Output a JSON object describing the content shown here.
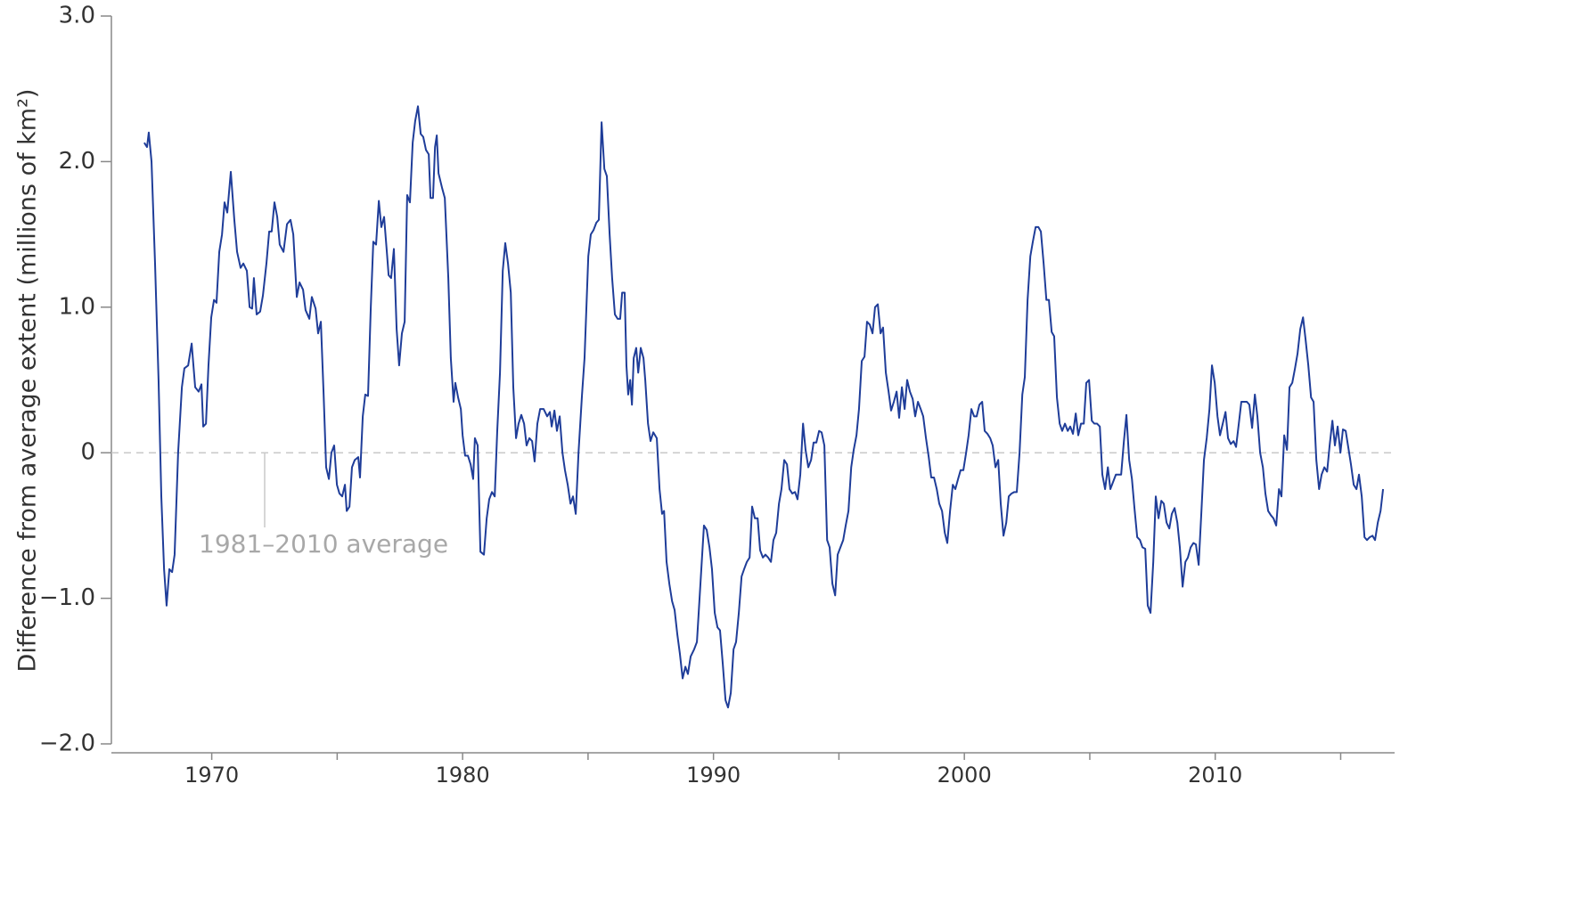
{
  "chart_data": {
    "type": "line",
    "ylabel": "Difference from average extent (millions of km²)",
    "annotation": "1981–2010 average",
    "xlim": [
      1966,
      2017.15
    ],
    "xticks": [
      1970,
      1980,
      1990,
      2000,
      2010
    ],
    "xminor": [
      1975,
      1985,
      1995,
      2005,
      2015
    ],
    "ylim": [
      -2,
      3
    ],
    "yticks": [
      {
        "value": -2,
        "label": "−2.0"
      },
      {
        "value": -1,
        "label": "−1.0"
      },
      0,
      {
        "value": 1,
        "label": "1.0"
      },
      {
        "value": 2,
        "label": "2.0"
      },
      {
        "value": 3,
        "label": "3.0"
      }
    ],
    "reference_line": 0,
    "series": [
      {
        "color": "#1f3d99",
        "x": [
          1967.31,
          1967.42,
          1967.49,
          1967.6,
          1967.74,
          1967.88,
          1967.99,
          1968.1,
          1968.2,
          1968.31,
          1968.42,
          1968.52,
          1968.66,
          1968.81,
          1968.91,
          1969.06,
          1969.2,
          1969.34,
          1969.48,
          1969.59,
          1969.66,
          1969.77,
          1969.87,
          1969.98,
          1970.09,
          1970.19,
          1970.3,
          1970.41,
          1970.51,
          1970.62,
          1970.76,
          1970.9,
          1971.01,
          1971.15,
          1971.26,
          1971.4,
          1971.51,
          1971.61,
          1971.68,
          1971.79,
          1971.93,
          1972.04,
          1972.18,
          1972.29,
          1972.39,
          1972.5,
          1972.61,
          1972.71,
          1972.86,
          1973.0,
          1973.14,
          1973.25,
          1973.39,
          1973.5,
          1973.64,
          1973.74,
          1973.89,
          1973.99,
          1974.14,
          1974.24,
          1974.35,
          1974.46,
          1974.56,
          1974.67,
          1974.77,
          1974.88,
          1974.99,
          1975.09,
          1975.2,
          1975.31,
          1975.38,
          1975.49,
          1975.59,
          1975.7,
          1975.84,
          1975.91,
          1976.02,
          1976.12,
          1976.23,
          1976.34,
          1976.44,
          1976.55,
          1976.66,
          1976.76,
          1976.87,
          1976.98,
          1977.05,
          1977.15,
          1977.26,
          1977.37,
          1977.47,
          1977.58,
          1977.69,
          1977.79,
          1977.9,
          1978.01,
          1978.11,
          1978.22,
          1978.33,
          1978.43,
          1978.54,
          1978.65,
          1978.72,
          1978.82,
          1978.9,
          1978.97,
          1979.04,
          1979.18,
          1979.29,
          1979.43,
          1979.53,
          1979.64,
          1979.71,
          1979.82,
          1979.93,
          1980.0,
          1980.1,
          1980.21,
          1980.32,
          1980.42,
          1980.49,
          1980.6,
          1980.71,
          1980.85,
          1980.96,
          1981.06,
          1981.17,
          1981.28,
          1981.38,
          1981.49,
          1981.6,
          1981.7,
          1981.81,
          1981.92,
          1982.02,
          1982.13,
          1982.23,
          1982.34,
          1982.45,
          1982.55,
          1982.66,
          1982.77,
          1982.87,
          1982.98,
          1983.09,
          1983.23,
          1983.37,
          1983.48,
          1983.55,
          1983.66,
          1983.76,
          1983.87,
          1983.98,
          1984.08,
          1984.19,
          1984.3,
          1984.4,
          1984.51,
          1984.62,
          1984.76,
          1984.86,
          1985.01,
          1985.11,
          1985.22,
          1985.33,
          1985.43,
          1985.54,
          1985.65,
          1985.75,
          1985.86,
          1985.96,
          1986.07,
          1986.18,
          1986.28,
          1986.36,
          1986.46,
          1986.53,
          1986.6,
          1986.68,
          1986.75,
          1986.82,
          1986.92,
          1987.0,
          1987.1,
          1987.21,
          1987.28,
          1987.39,
          1987.49,
          1987.6,
          1987.74,
          1987.85,
          1987.95,
          1988.03,
          1988.13,
          1988.24,
          1988.35,
          1988.45,
          1988.56,
          1988.66,
          1988.77,
          1988.88,
          1988.98,
          1989.09,
          1989.23,
          1989.34,
          1989.48,
          1989.62,
          1989.73,
          1989.84,
          1989.94,
          1990.05,
          1990.16,
          1990.26,
          1990.37,
          1990.48,
          1990.58,
          1990.69,
          1990.8,
          1990.9,
          1991.01,
          1991.12,
          1991.22,
          1991.33,
          1991.44,
          1991.54,
          1991.65,
          1991.76,
          1991.86,
          1991.97,
          1992.07,
          1992.18,
          1992.29,
          1992.39,
          1992.5,
          1992.61,
          1992.71,
          1992.82,
          1992.93,
          1993.03,
          1993.14,
          1993.25,
          1993.35,
          1993.46,
          1993.57,
          1993.67,
          1993.78,
          1993.89,
          1993.99,
          1994.1,
          1994.21,
          1994.31,
          1994.42,
          1994.53,
          1994.63,
          1994.74,
          1994.85,
          1994.95,
          1995.06,
          1995.17,
          1995.27,
          1995.38,
          1995.49,
          1995.59,
          1995.7,
          1995.8,
          1995.91,
          1996.02,
          1996.12,
          1996.23,
          1996.34,
          1996.44,
          1996.55,
          1996.66,
          1996.76,
          1996.87,
          1996.98,
          1997.08,
          1997.19,
          1997.3,
          1997.4,
          1997.51,
          1997.62,
          1997.72,
          1997.83,
          1997.94,
          1998.04,
          1998.15,
          1998.26,
          1998.36,
          1998.47,
          1998.58,
          1998.68,
          1998.79,
          1998.9,
          1999.0,
          1999.11,
          1999.22,
          1999.32,
          1999.43,
          1999.54,
          1999.64,
          1999.75,
          1999.85,
          1999.96,
          2000.07,
          2000.17,
          2000.28,
          2000.39,
          2000.49,
          2000.6,
          2000.71,
          2000.81,
          2000.92,
          2001.03,
          2001.13,
          2001.24,
          2001.35,
          2001.45,
          2001.56,
          2001.67,
          2001.77,
          2001.88,
          2001.99,
          2002.09,
          2002.2,
          2002.31,
          2002.41,
          2002.52,
          2002.63,
          2002.73,
          2002.84,
          2002.95,
          2003.05,
          2003.16,
          2003.27,
          2003.37,
          2003.48,
          2003.58,
          2003.69,
          2003.8,
          2003.9,
          2004.01,
          2004.12,
          2004.22,
          2004.33,
          2004.44,
          2004.54,
          2004.65,
          2004.76,
          2004.86,
          2004.97,
          2005.08,
          2005.18,
          2005.29,
          2005.4,
          2005.5,
          2005.61,
          2005.72,
          2005.82,
          2005.93,
          2006.04,
          2006.14,
          2006.25,
          2006.36,
          2006.46,
          2006.57,
          2006.68,
          2006.78,
          2006.89,
          2007.0,
          2007.1,
          2007.21,
          2007.31,
          2007.42,
          2007.53,
          2007.63,
          2007.74,
          2007.85,
          2007.95,
          2008.06,
          2008.17,
          2008.27,
          2008.38,
          2008.49,
          2008.59,
          2008.7,
          2008.81,
          2008.91,
          2009.02,
          2009.13,
          2009.23,
          2009.34,
          2009.45,
          2009.55,
          2009.66,
          2009.77,
          2009.87,
          2009.98,
          2010.09,
          2010.19,
          2010.3,
          2010.41,
          2010.51,
          2010.62,
          2010.73,
          2010.83,
          2010.94,
          2011.04,
          2011.15,
          2011.26,
          2011.36,
          2011.47,
          2011.58,
          2011.68,
          2011.79,
          2011.9,
          2012.0,
          2012.11,
          2012.22,
          2012.32,
          2012.43,
          2012.54,
          2012.64,
          2012.75,
          2012.86,
          2012.96,
          2013.07,
          2013.18,
          2013.28,
          2013.39,
          2013.5,
          2013.6,
          2013.71,
          2013.82,
          2013.92,
          2014.03,
          2014.14,
          2014.24,
          2014.35,
          2014.46,
          2014.56,
          2014.67,
          2014.77,
          2014.88,
          2014.99,
          2015.09,
          2015.2,
          2015.31,
          2015.41,
          2015.52,
          2015.63,
          2015.73,
          2015.84,
          2015.95,
          2016.05,
          2016.16,
          2016.27,
          2016.37,
          2016.48,
          2016.59,
          2016.69
        ],
        "values": [
          2.13,
          2.1,
          2.2,
          2.0,
          1.3,
          0.5,
          -0.3,
          -0.8,
          -1.05,
          -0.8,
          -0.82,
          -0.7,
          0.0,
          0.45,
          0.58,
          0.6,
          0.75,
          0.45,
          0.42,
          0.47,
          0.18,
          0.2,
          0.6,
          0.93,
          1.05,
          1.03,
          1.38,
          1.5,
          1.72,
          1.65,
          1.93,
          1.6,
          1.38,
          1.27,
          1.3,
          1.25,
          1.0,
          0.99,
          1.2,
          0.95,
          0.97,
          1.08,
          1.3,
          1.52,
          1.52,
          1.72,
          1.62,
          1.43,
          1.38,
          1.57,
          1.6,
          1.5,
          1.07,
          1.17,
          1.12,
          0.98,
          0.92,
          1.07,
          0.99,
          0.82,
          0.9,
          0.4,
          -0.1,
          -0.18,
          0.0,
          0.05,
          -0.22,
          -0.28,
          -0.3,
          -0.22,
          -0.4,
          -0.37,
          -0.1,
          -0.05,
          -0.03,
          -0.17,
          0.25,
          0.4,
          0.39,
          1.0,
          1.45,
          1.43,
          1.73,
          1.55,
          1.62,
          1.38,
          1.22,
          1.2,
          1.4,
          0.85,
          0.6,
          0.82,
          0.9,
          1.77,
          1.72,
          2.13,
          2.28,
          2.38,
          2.19,
          2.17,
          2.08,
          2.05,
          1.75,
          1.75,
          2.1,
          2.18,
          1.92,
          1.82,
          1.75,
          1.2,
          0.65,
          0.35,
          0.48,
          0.38,
          0.3,
          0.12,
          -0.02,
          -0.02,
          -0.08,
          -0.18,
          0.1,
          0.05,
          -0.68,
          -0.7,
          -0.45,
          -0.32,
          -0.27,
          -0.3,
          0.15,
          0.55,
          1.25,
          1.44,
          1.3,
          1.1,
          0.45,
          0.1,
          0.2,
          0.26,
          0.2,
          0.05,
          0.1,
          0.08,
          -0.06,
          0.2,
          0.3,
          0.3,
          0.25,
          0.28,
          0.18,
          0.29,
          0.15,
          0.25,
          0.0,
          -0.12,
          -0.22,
          -0.35,
          -0.3,
          -0.42,
          0.0,
          0.4,
          0.65,
          1.35,
          1.5,
          1.53,
          1.58,
          1.6,
          2.27,
          1.95,
          1.9,
          1.5,
          1.2,
          0.95,
          0.92,
          0.92,
          1.1,
          1.1,
          0.6,
          0.4,
          0.5,
          0.33,
          0.65,
          0.72,
          0.55,
          0.72,
          0.65,
          0.5,
          0.2,
          0.08,
          0.14,
          0.1,
          -0.25,
          -0.42,
          -0.4,
          -0.75,
          -0.9,
          -1.02,
          -1.08,
          -1.25,
          -1.38,
          -1.55,
          -1.47,
          -1.52,
          -1.4,
          -1.35,
          -1.3,
          -0.9,
          -0.5,
          -0.53,
          -0.65,
          -0.8,
          -1.1,
          -1.2,
          -1.22,
          -1.45,
          -1.7,
          -1.75,
          -1.65,
          -1.35,
          -1.3,
          -1.1,
          -0.85,
          -0.8,
          -0.75,
          -0.72,
          -0.37,
          -0.45,
          -0.45,
          -0.67,
          -0.72,
          -0.7,
          -0.72,
          -0.75,
          -0.6,
          -0.55,
          -0.35,
          -0.25,
          -0.05,
          -0.08,
          -0.25,
          -0.28,
          -0.27,
          -0.32,
          -0.15,
          0.2,
          0.02,
          -0.1,
          -0.05,
          0.07,
          0.07,
          0.15,
          0.14,
          0.05,
          -0.6,
          -0.65,
          -0.9,
          -0.98,
          -0.7,
          -0.65,
          -0.6,
          -0.5,
          -0.4,
          -0.1,
          0.02,
          0.12,
          0.3,
          0.63,
          0.66,
          0.9,
          0.88,
          0.82,
          1.0,
          1.02,
          0.82,
          0.86,
          0.55,
          0.42,
          0.29,
          0.35,
          0.42,
          0.24,
          0.45,
          0.3,
          0.5,
          0.42,
          0.37,
          0.25,
          0.35,
          0.3,
          0.25,
          0.1,
          -0.03,
          -0.17,
          -0.17,
          -0.25,
          -0.35,
          -0.4,
          -0.55,
          -0.62,
          -0.4,
          -0.22,
          -0.25,
          -0.18,
          -0.12,
          -0.12,
          0.0,
          0.12,
          0.3,
          0.25,
          0.25,
          0.33,
          0.35,
          0.15,
          0.13,
          0.1,
          0.05,
          -0.1,
          -0.05,
          -0.35,
          -0.57,
          -0.48,
          -0.3,
          -0.28,
          -0.27,
          -0.27,
          0.0,
          0.4,
          0.52,
          1.05,
          1.35,
          1.45,
          1.55,
          1.55,
          1.52,
          1.3,
          1.05,
          1.05,
          0.83,
          0.8,
          0.38,
          0.2,
          0.15,
          0.2,
          0.15,
          0.18,
          0.13,
          0.27,
          0.12,
          0.2,
          0.2,
          0.48,
          0.5,
          0.22,
          0.2,
          0.2,
          0.18,
          -0.15,
          -0.25,
          -0.1,
          -0.25,
          -0.2,
          -0.15,
          -0.15,
          -0.15,
          0.08,
          0.26,
          -0.05,
          -0.18,
          -0.38,
          -0.58,
          -0.6,
          -0.65,
          -0.66,
          -1.05,
          -1.1,
          -0.75,
          -0.3,
          -0.45,
          -0.33,
          -0.35,
          -0.48,
          -0.52,
          -0.42,
          -0.38,
          -0.48,
          -0.65,
          -0.92,
          -0.75,
          -0.72,
          -0.65,
          -0.62,
          -0.63,
          -0.77,
          -0.4,
          -0.05,
          0.1,
          0.3,
          0.6,
          0.48,
          0.25,
          0.12,
          0.2,
          0.28,
          0.1,
          0.06,
          0.08,
          0.04,
          0.2,
          0.35,
          0.35,
          0.35,
          0.33,
          0.17,
          0.4,
          0.25,
          0.0,
          -0.1,
          -0.28,
          -0.4,
          -0.43,
          -0.45,
          -0.5,
          -0.25,
          -0.3,
          0.12,
          0.02,
          0.45,
          0.48,
          0.58,
          0.68,
          0.85,
          0.93,
          0.78,
          0.6,
          0.38,
          0.35,
          -0.05,
          -0.25,
          -0.15,
          -0.1,
          -0.13,
          0.05,
          0.22,
          0.05,
          0.18,
          0.0,
          0.16,
          0.15,
          0.03,
          -0.08,
          -0.22,
          -0.25,
          -0.15,
          -0.3,
          -0.58,
          -0.6,
          -0.58,
          -0.57,
          -0.6,
          -0.48,
          -0.4,
          -0.25
        ]
      }
    ]
  }
}
